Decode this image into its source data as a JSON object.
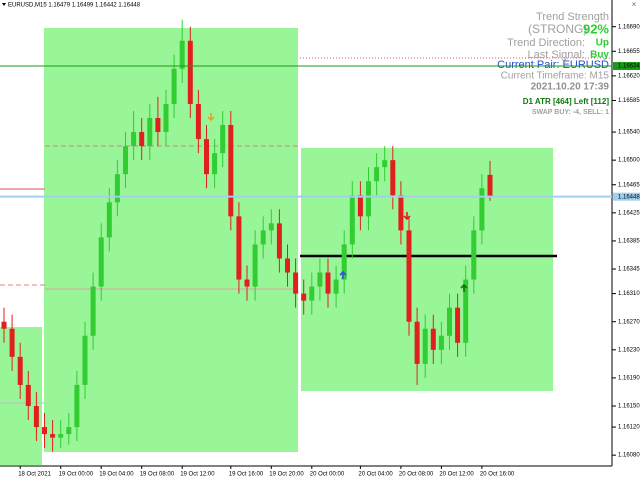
{
  "chart_data": {
    "type": "candlestick",
    "header": "EURUSD,M15  1.16479 1.16499 1.16442 1.16448",
    "up_color": "#32cd32",
    "down_color": "#e0201c",
    "categories": [
      null,
      null,
      "18 Oct 2021",
      null,
      null,
      null,
      null,
      "19 Oct 00:00",
      null,
      null,
      null,
      null,
      "19 Oct 04:00",
      null,
      null,
      null,
      null,
      "19 Oct 08:00",
      null,
      null,
      null,
      null,
      "19 Oct 12:00",
      null,
      null,
      null,
      null,
      null,
      "19 Oct 16:00",
      null,
      null,
      null,
      null,
      "19 Oct 20:00",
      null,
      null,
      null,
      null,
      "20 Oct 00:00",
      null,
      null,
      null,
      null,
      null,
      "20 Oct 04:00",
      null,
      null,
      null,
      null,
      "20 Oct 08:00",
      null,
      null,
      null,
      null,
      "20 Oct 12:00",
      null,
      null,
      null,
      null,
      "20 Oct 16:00",
      null
    ],
    "open": [
      1.1627,
      1.1626,
      1.1622,
      1.1618,
      1.1615,
      1.1612,
      1.1611,
      1.16105,
      1.1611,
      1.1612,
      1.1618,
      1.1625,
      1.1632,
      1.1639,
      1.1644,
      1.1648,
      1.1652,
      1.1654,
      1.1652,
      1.1656,
      1.1654,
      1.1658,
      1.1663,
      1.1667,
      1.1658,
      1.1653,
      1.1648,
      1.1651,
      1.1655,
      1.1642,
      1.1633,
      1.1632,
      1.1638,
      1.164,
      1.1641,
      1.1636,
      1.1634,
      1.1631,
      1.163,
      1.1632,
      1.1634,
      1.1631,
      1.1633,
      1.1638,
      1.1645,
      1.1642,
      1.1647,
      1.1649,
      1.165,
      1.1645,
      1.164,
      1.1627,
      1.1621,
      1.1626,
      1.1623,
      1.1625,
      1.1629,
      1.1624,
      1.1633,
      1.164,
      1.16479
    ],
    "high": [
      1.1629,
      1.1628,
      1.1624,
      1.162,
      1.1617,
      1.1614,
      1.1613,
      1.1613,
      1.1614,
      1.162,
      1.1627,
      1.1634,
      1.1641,
      1.1646,
      1.165,
      1.1654,
      1.1657,
      1.1656,
      1.1658,
      1.1659,
      1.166,
      1.1665,
      1.167,
      1.1669,
      1.166,
      1.1655,
      1.1653,
      1.1657,
      1.1657,
      1.1644,
      1.1635,
      1.164,
      1.1642,
      1.1643,
      1.1643,
      1.1638,
      1.1636,
      1.1633,
      1.1634,
      1.1636,
      1.1636,
      1.1635,
      1.164,
      1.1647,
      1.1647,
      1.1649,
      1.1651,
      1.1652,
      1.1652,
      1.1647,
      1.1642,
      1.1629,
      1.1628,
      1.1628,
      1.1627,
      1.1631,
      1.1631,
      1.1635,
      1.1642,
      1.1648,
      1.16499
    ],
    "low": [
      1.1624,
      1.162,
      1.1616,
      1.1613,
      1.161,
      1.1609,
      1.16085,
      1.1609,
      1.16095,
      1.161,
      1.1616,
      1.1623,
      1.163,
      1.1637,
      1.1642,
      1.1646,
      1.165,
      1.165,
      1.165,
      1.1652,
      1.1652,
      1.1656,
      1.1661,
      1.1656,
      1.1651,
      1.1646,
      1.1646,
      1.1649,
      1.164,
      1.1631,
      1.163,
      1.163,
      1.1636,
      1.1638,
      1.1634,
      1.1632,
      1.1629,
      1.1628,
      1.1628,
      1.163,
      1.1629,
      1.1629,
      1.1631,
      1.1636,
      1.164,
      1.164,
      1.1645,
      1.1647,
      1.1643,
      1.1638,
      1.1625,
      1.1618,
      1.1619,
      1.1621,
      1.1621,
      1.1623,
      1.1622,
      1.1622,
      1.1631,
      1.1638,
      1.16442
    ],
    "close": [
      1.1626,
      1.1622,
      1.1618,
      1.1615,
      1.1612,
      1.1611,
      1.16105,
      1.1611,
      1.1612,
      1.1618,
      1.1625,
      1.1632,
      1.1639,
      1.1644,
      1.1648,
      1.1652,
      1.1654,
      1.1652,
      1.1656,
      1.1654,
      1.1658,
      1.1663,
      1.1667,
      1.1658,
      1.1653,
      1.1648,
      1.1651,
      1.1655,
      1.1642,
      1.1633,
      1.1632,
      1.1638,
      1.164,
      1.1641,
      1.1636,
      1.1634,
      1.1631,
      1.163,
      1.1632,
      1.1634,
      1.1631,
      1.1633,
      1.1638,
      1.1645,
      1.1642,
      1.1647,
      1.1649,
      1.165,
      1.1645,
      1.164,
      1.1627,
      1.1621,
      1.1626,
      1.1623,
      1.1625,
      1.1629,
      1.1624,
      1.1633,
      1.164,
      1.1646,
      1.16448
    ],
    "ylim": [
      1.16066,
      1.16728
    ],
    "yticks": [
      {
        "value": 1.1669,
        "label": "1.16690"
      },
      {
        "value": 1.16655,
        "label": "1.16655"
      },
      {
        "value": 1.1662,
        "label": "1.16620"
      },
      {
        "value": 1.16585,
        "label": "1.16585"
      },
      {
        "value": 1.1654,
        "label": "1.16540"
      },
      {
        "value": 1.165,
        "label": "1.16500"
      },
      {
        "value": 1.16465,
        "label": "1.16465"
      },
      {
        "value": 1.16425,
        "label": "1.16425"
      },
      {
        "value": 1.16385,
        "label": "1.16385"
      },
      {
        "value": 1.16345,
        "label": "1.16345"
      },
      {
        "value": 1.1631,
        "label": "1.16310"
      },
      {
        "value": 1.1627,
        "label": "1.16270"
      },
      {
        "value": 1.1623,
        "label": "1.16230"
      },
      {
        "value": 1.1619,
        "label": "1.16190"
      },
      {
        "value": 1.1615,
        "label": "1.16150"
      },
      {
        "value": 1.1612,
        "label": "1.16120"
      },
      {
        "value": 1.1608,
        "label": "1.16080"
      }
    ],
    "price_markers": [
      {
        "value": 1.16634,
        "label": "1.16634",
        "color": "#1a9a1a"
      },
      {
        "value": 1.16448,
        "label": "1.16448",
        "color": "#9fd0f0"
      }
    ],
    "panel": {
      "trend_strength": "Trend Strength",
      "strength_text": "(STRONG)",
      "strength_value": "92%",
      "direction_label": "Trend Direction:",
      "direction_value": "Up",
      "signal_label": "Last Signal:",
      "signal_value": "Buy",
      "pair": "Current Pair: EURUSD",
      "timeframe": "Current Timeframe: M15",
      "datetime": "2021.10.20 17:39",
      "atr": "D1 ATR [464] Left [112]",
      "swap": "SWAP BUY: -4, SELL: 1"
    }
  }
}
